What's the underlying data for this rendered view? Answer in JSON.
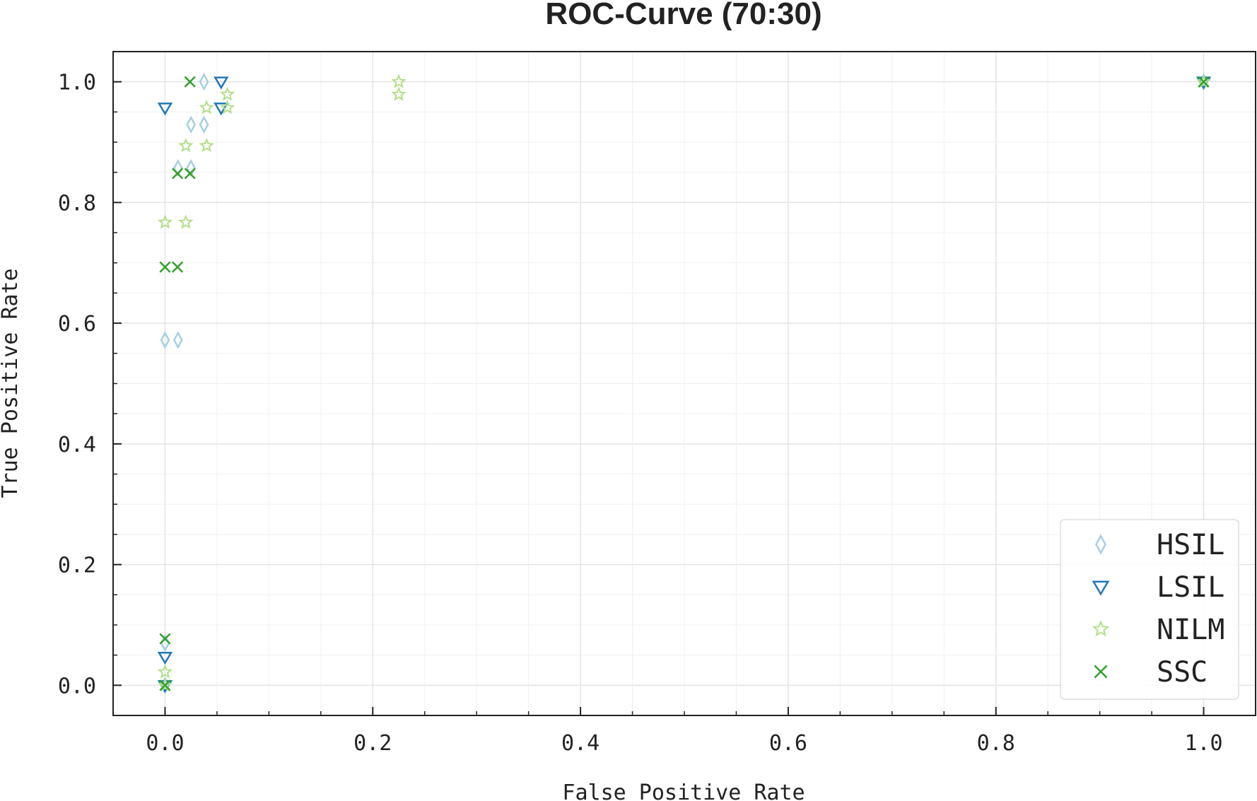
{
  "chart_data": {
    "type": "scatter",
    "title": "ROC-Curve (70:30)",
    "xlabel": "False Positive Rate",
    "ylabel": "True Positive Rate",
    "xlim": [
      -0.05,
      1.05
    ],
    "ylim": [
      -0.05,
      1.05
    ],
    "xticks": [
      "0.0",
      "0.2",
      "0.4",
      "0.6",
      "0.8",
      "1.0"
    ],
    "yticks": [
      "0.0",
      "0.2",
      "0.4",
      "0.6",
      "0.8",
      "1.0"
    ],
    "grid": true,
    "legend_position": "lower-right",
    "series": [
      {
        "name": "HSIL",
        "marker": "diamond",
        "color": "#a6cee3",
        "points": [
          [
            0,
            0
          ],
          [
            0,
            0.07
          ],
          [
            0,
            0.572
          ],
          [
            0.0125,
            0.572
          ],
          [
            0.0125,
            0.857
          ],
          [
            0.025,
            0.857
          ],
          [
            0.025,
            0.929
          ],
          [
            0.0375,
            0.929
          ],
          [
            0.0375,
            1.0
          ],
          [
            1.0,
            1.0
          ]
        ]
      },
      {
        "name": "LSIL",
        "marker": "triangle-down",
        "color": "#1f78b4",
        "points": [
          [
            0,
            0
          ],
          [
            0,
            0.047
          ],
          [
            0,
            0.957
          ],
          [
            0.054,
            0.957
          ],
          [
            0.054,
            1.0
          ],
          [
            1.0,
            1.0
          ]
        ]
      },
      {
        "name": "NILM",
        "marker": "star",
        "color": "#b2df8a",
        "points": [
          [
            0,
            0
          ],
          [
            0,
            0.022
          ],
          [
            0,
            0.767
          ],
          [
            0.02,
            0.767
          ],
          [
            0.02,
            0.894
          ],
          [
            0.04,
            0.894
          ],
          [
            0.04,
            0.957
          ],
          [
            0.06,
            0.957
          ],
          [
            0.06,
            0.979
          ],
          [
            0.225,
            0.979
          ],
          [
            0.225,
            1.0
          ],
          [
            1.0,
            1.0
          ]
        ]
      },
      {
        "name": "SSC",
        "marker": "x",
        "color": "#33a02c",
        "points": [
          [
            0,
            0
          ],
          [
            0,
            0.077
          ],
          [
            0,
            0.693
          ],
          [
            0.012,
            0.693
          ],
          [
            0.012,
            0.848
          ],
          [
            0.024,
            0.848
          ],
          [
            0.024,
            1.0
          ],
          [
            1.0,
            1.0
          ]
        ]
      }
    ]
  }
}
